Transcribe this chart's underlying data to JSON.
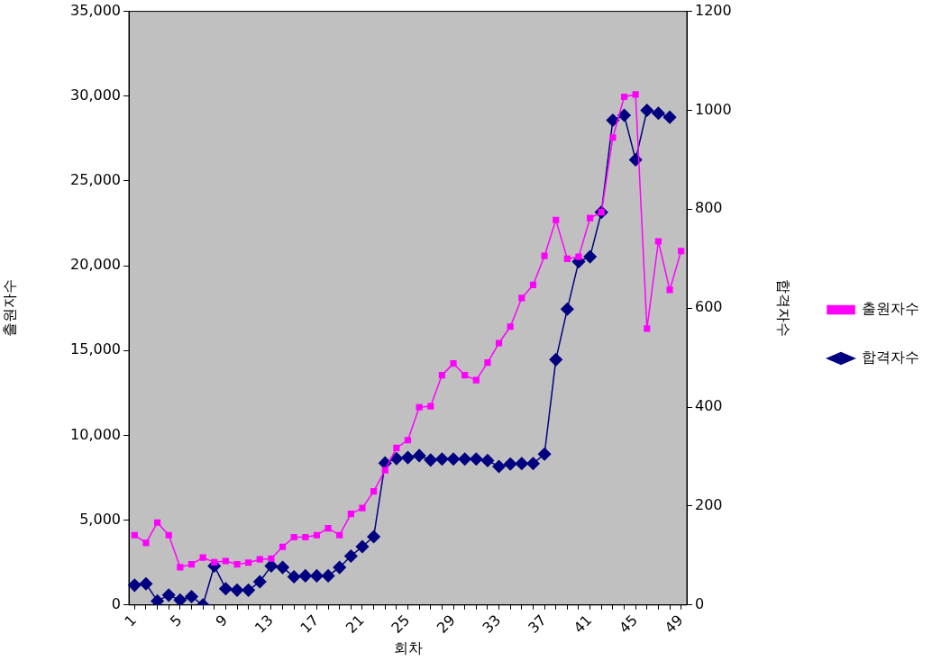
{
  "chart_data": {
    "type": "line",
    "xlabel": "회차",
    "ylabel": "출원자수",
    "y2label": "합격자수",
    "categories": [
      "1",
      null,
      null,
      null,
      "5",
      null,
      null,
      null,
      "9",
      null,
      null,
      null,
      "13",
      null,
      null,
      null,
      "17",
      null,
      null,
      null,
      "21",
      null,
      null,
      null,
      "25",
      null,
      null,
      null,
      "29",
      null,
      null,
      null,
      "33",
      null,
      null,
      null,
      "37",
      null,
      null,
      null,
      "41",
      null,
      null,
      null,
      "45",
      null,
      null,
      null,
      "49"
    ],
    "series": [
      {
        "name": "출원자수",
        "color": "#ff00ff",
        "marker": "square",
        "values": [
          4120,
          3660,
          4860,
          4120,
          2230,
          2400,
          2800,
          2520,
          2590,
          2400,
          2500,
          2690,
          2740,
          3430,
          4000,
          4000,
          4120,
          4520,
          4120,
          5370,
          5720,
          6700,
          7950,
          9260,
          9720,
          11660,
          11720,
          13550,
          14240,
          13550,
          13260,
          14290,
          15440,
          16410,
          18100,
          18870,
          20580,
          22700,
          20410,
          20530,
          22810,
          23160,
          27560,
          29960,
          30100,
          16300,
          21440,
          18580,
          20870
        ]
      },
      {
        "name": "합격자수",
        "color": "#000080",
        "marker": "diamond",
        "axis": "y2",
        "values": [
          40,
          43,
          8,
          20,
          10,
          17,
          0,
          79,
          33,
          30,
          30,
          47,
          79,
          76,
          57,
          59,
          59,
          59,
          76,
          99,
          118,
          138,
          287,
          296,
          298,
          302,
          293,
          295,
          295,
          295,
          295,
          292,
          280,
          285,
          286,
          286,
          305,
          496,
          598,
          694,
          704,
          794,
          980,
          990,
          900,
          1000,
          994,
          986,
          null
        ]
      }
    ],
    "ylim": [
      0,
      35000
    ],
    "yticks": [
      {
        "value": 0,
        "label": "0"
      },
      {
        "value": 5000,
        "label": "5,000"
      },
      {
        "value": 10000,
        "label": "10,000"
      },
      {
        "value": 15000,
        "label": "15,000"
      },
      {
        "value": 20000,
        "label": "20,000"
      },
      {
        "value": 25000,
        "label": "25,000"
      },
      {
        "value": 30000,
        "label": "30,000"
      },
      {
        "value": 35000,
        "label": "35,000"
      }
    ],
    "y2lim": [
      0,
      1200
    ],
    "y2ticks": [
      0,
      200,
      400,
      600,
      800,
      1000,
      1200
    ],
    "grid": false,
    "legend": "right",
    "line_style": "solid"
  }
}
